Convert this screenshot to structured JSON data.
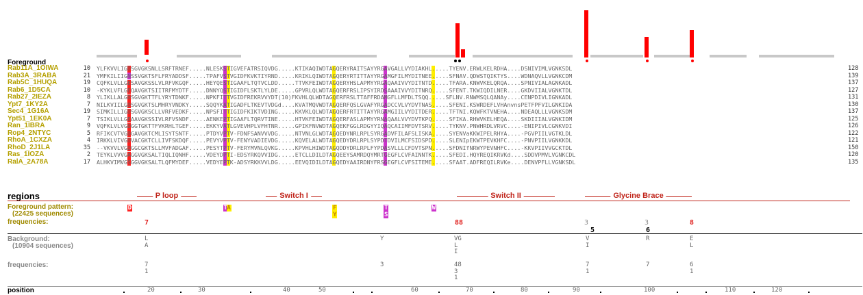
{
  "labels": {
    "foreground": "Foreground",
    "regions": "regions",
    "fg_pattern_1": "Foreground pattern:",
    "fg_pattern_2": "(22425 sequences)",
    "frequencies": "frequencies:",
    "background_1": "Background:",
    "background_2": "(10904 sequences)",
    "frequencies_bg": "frequencies:",
    "position": "position"
  },
  "sequences": [
    {
      "name": "Rab11A_1OIWA",
      "start": "10",
      "seq": "YLFKVVLIGDSGVGKSNLLSRFTRNEF.....NLESKSTIGVEFATRSIQVDG.....KTIKAQIWDTAGQERYRAITSAYYRGAVGALLVYDIAKHL.....TYENV.ERWLKELRDHA....DSNIVIMLVGNKSDL",
      "end": "128"
    },
    {
      "name": "Rab3A_3RABA",
      "start": "21",
      "seq": "YMFKILIIGNSSVGKTSFLFRYADDSF.....TPAFVSTVGIDFKVKTIYRND.....KRIKLQIWDTAGQERYRTITTAYYRGAMGFILMYDITNEE.....SFNAV.QDWSTQIKTYS....WDNAQVLLVGNKCDM",
      "end": "139"
    },
    {
      "name": "Rab5C_1HUQA",
      "start": "19",
      "seq": "CQFKLVLLGESAVGKSSLVLRFVKGQF.....HEYQESTIGAAFLTQTVCLDD.....TTVKFEIWDTAGQERYHSLAPMYYRGAQAAIVVYDITNTD.....TFARA.KNWVKELQRQA....SPNIVIALAGNKADL",
      "end": "137"
    },
    {
      "name": "Rab6_1D5CA",
      "start": "10",
      "seq": "-KYKLVFLGEQAVGKTSIITRFMYDTF.....DNNYQSTIGIDFLSKTLYLDE.....GPVRLQLWDTAGQERFRSLIPSYIRDSAAAIVVYDITNRQ.....SFENT.TKWIQDILNER....GKDVIIALVGNKTDL",
      "end": "127"
    },
    {
      "name": "Rab27_2IEZA",
      "start": "8",
      "seq": "YLIKLLALGDSGVGKTTFLYRYTDNKF.....NPKFITTVGIDFREKRVVYDT(10)FKVHLQLWDTAGQERFRSLTTAFFRDAMGFLLMFDLTSQQ.....SFLNV.RNWMSQLQANAy....CENPDIVLIGNKADL",
      "end": "131"
    },
    {
      "name": "Ypt7_1KY2A",
      "start": "7",
      "seq": "NILKVIILGDSGVGKTSLMHRYVNDKY.....SQQYKATIGADFLTKEVTVDGd....KVATMQVWDTAGQERFQSLGVAFYRGADCCVLVYDVTNAS.....SFENI.KSWRDEFLVHAnvnsPETFPFVILGNKIDA",
      "end": "130"
    },
    {
      "name": "Sec4_1G16A",
      "start": "19",
      "seq": "SIMKILLIGDSGVGKSCLLVRFVEDKF.....NPSFITTIGIDFKIKTVDING.....KKVKLQLWDTAGQERFRTITTAYYRGAMGIILVYDITDER.....TFTNI.KQWFKTVNEHA....NDEAQLLLVGNKSDM",
      "end": "137"
    },
    {
      "name": "Ypt51_1EK0A",
      "start": "7",
      "seq": "TSIKLVLLGEAAVGKSSIVLRFVSNDF.....AENKEPTIGAAFLTQRVTINE.....HTVKFEIWDTAGQERFASLAPMYYRNAQAALVVYDVTKPQ.....SFIKA.RHWVKELHEQA....SKDIIIALVGNKIDM",
      "end": "125"
    },
    {
      "name": "Ran_1IBRA",
      "start": "9",
      "seq": "VQFKLVLVGDGGTGKTTFVKRHLTGEF.....EKKYVATLGVEVHPLVFHTNR.....GPIKFNVWDTAGQEKFGGLRDGYYIQAQCAIIMFDVTSRV.....TYKNV.PNWHRDLVRVC....-ENIPIVLCGNKVDI",
      "end": "126"
    },
    {
      "name": "Rop4_2NTYC",
      "start": "5",
      "seq": "RFIKCVTVGDGAVGKTCMLISYTSNTF.....PTDYVPTV-FDNFSANVVVDG.....NTVNLGLWDTAGQEDYNRLRPLSYRGADVFILAFSLISKA.....SYENVaKKWIPELRHYA....-PGVPIILVGTKLDL",
      "end": "122"
    },
    {
      "name": "RhoA_1CXZA",
      "start": "4",
      "seq": "IRKKLVIVGDVACGKTCLLIVFSKDQF.....PEVYVPTV-FENYVADIEVDG.....KQVELALWDTAGQEDYDRLRPLSYPDTDVILMCFSIDSPD.....SLENIpEKWTPEVKHFC....-PNVPIILVGNKKDL",
      "end": "121"
    },
    {
      "name": "RhoD_2J1LA",
      "start": "35",
      "seq": "--VKVVLVGDGGCGKTSLLMVFADGAF.....PESYTPTV-FERYMVNLQVKG.....KPVHLHIWDTAGQDDYDRLRPLFYPDASVLLLCFDVTSPN.....SFDNIfNRWYPEVNHFC....-KKVPIIVVGCKTDL",
      "end": "150"
    },
    {
      "name": "Ras_1IOZA",
      "start": "2",
      "seq": "TEYKLVVVGAGGVGKSALTIQLIQNHF.....VDEYDPTI-EDSYRKQVVIDG.....ETCLLDILDTAGQEEYSAMRDQYMRTGEGFLCVFAINNTK.....SFEDI.HQYREQIKRVKd....SDDVPMVLVGNKCDL",
      "end": "120"
    },
    {
      "name": "RalA_2A78A",
      "start": "17",
      "seq": "ALHKVIMVGSGGVGKSALTLQFMYDEF.....VEDYEPTK-ADSYRKKVVLDG.....EEVQIDILDTAGQEDYAAIRDNYFRSGEGFLCVFSITEME.....SFAAT.ADFREQILRVKe....DENVPFLLVGNKSDL",
      "end": "135"
    }
  ],
  "regions": [
    {
      "name": "P loop"
    },
    {
      "name": "Switch I"
    },
    {
      "name": "Switch II"
    },
    {
      "name": "Glycine Brace"
    }
  ],
  "foreground_pattern": [
    {
      "letter": "D",
      "color": "#ff2020",
      "col": 9
    },
    {
      "letter": "T",
      "color": "#cc33cc",
      "col": 37
    },
    {
      "letter": "A",
      "color": "#ffee00",
      "col": 38
    },
    {
      "letter": "F",
      "color": "#ffee00",
      "col": 69
    },
    {
      "letter": "Y",
      "color": "#ffee00",
      "col": 69,
      "row": 1
    },
    {
      "letter": "T",
      "color": "#cc33cc",
      "col": 84
    },
    {
      "letter": "S",
      "color": "#cc33cc",
      "col": 84,
      "row": 1
    },
    {
      "letter": "W",
      "color": "#cc33cc",
      "col": 98
    }
  ],
  "fg_frequencies": [
    "7",
    "88",
    "3",
    "3",
    "8"
  ],
  "fg_subfreq": [
    "5",
    "6"
  ],
  "background_letters": [
    {
      "col": "L\nA"
    },
    {
      "col": "Y"
    },
    {
      "col": "VG\nL\nI"
    },
    {
      "col": "V\nI"
    },
    {
      "col": "R"
    },
    {
      "col": "E\nL"
    }
  ],
  "bg_frequencies": [
    {
      "v": "7\n1"
    },
    {
      "v": "3"
    },
    {
      "v": "48\n3\n1"
    },
    {
      "v": "7\n1"
    },
    {
      "v": "7"
    },
    {
      "v": "6\n1"
    }
  ],
  "positions": [
    "20",
    "30",
    "40",
    "50",
    "60",
    "70",
    "80",
    "90",
    "100",
    "110",
    "120"
  ]
}
